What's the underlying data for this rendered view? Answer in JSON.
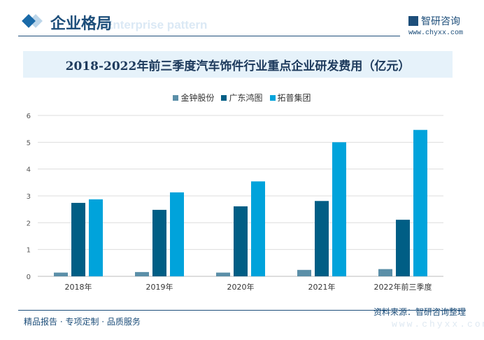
{
  "header": {
    "section_title": "企业格局",
    "section_subtitle": "Enterprise pattern",
    "brand": "智研咨询",
    "url": "www.chyxx.com"
  },
  "footer": {
    "left": "精品报告 · 专项定制 · 品质服务",
    "source": "资料来源：智研咨询整理",
    "url": "www.chyxx.com"
  },
  "colors": {
    "金钟股份": "#5b8fa8",
    "广东鸿图": "#005e85",
    "拓普集团": "#00a3db"
  },
  "chart_data": {
    "type": "bar",
    "title": "2018-2022年前三季度汽车饰件行业重点企业研发费用（亿元）",
    "categories": [
      "2018年",
      "2019年",
      "2020年",
      "2021年",
      "2022年前三季度"
    ],
    "series": [
      {
        "name": "金钟股份",
        "values": [
          0.14,
          0.16,
          0.14,
          0.24,
          0.27
        ]
      },
      {
        "name": "广东鸿图",
        "values": [
          2.74,
          2.48,
          2.61,
          2.81,
          2.11
        ]
      },
      {
        "name": "拓普集团",
        "values": [
          2.87,
          3.13,
          3.54,
          5.0,
          5.46
        ]
      }
    ],
    "ylim": [
      0,
      6
    ],
    "yticks": [
      "0",
      "1",
      "2",
      "3",
      "4",
      "5",
      "6"
    ],
    "xlabel": "",
    "ylabel": "",
    "grid": true,
    "legend": "top"
  }
}
